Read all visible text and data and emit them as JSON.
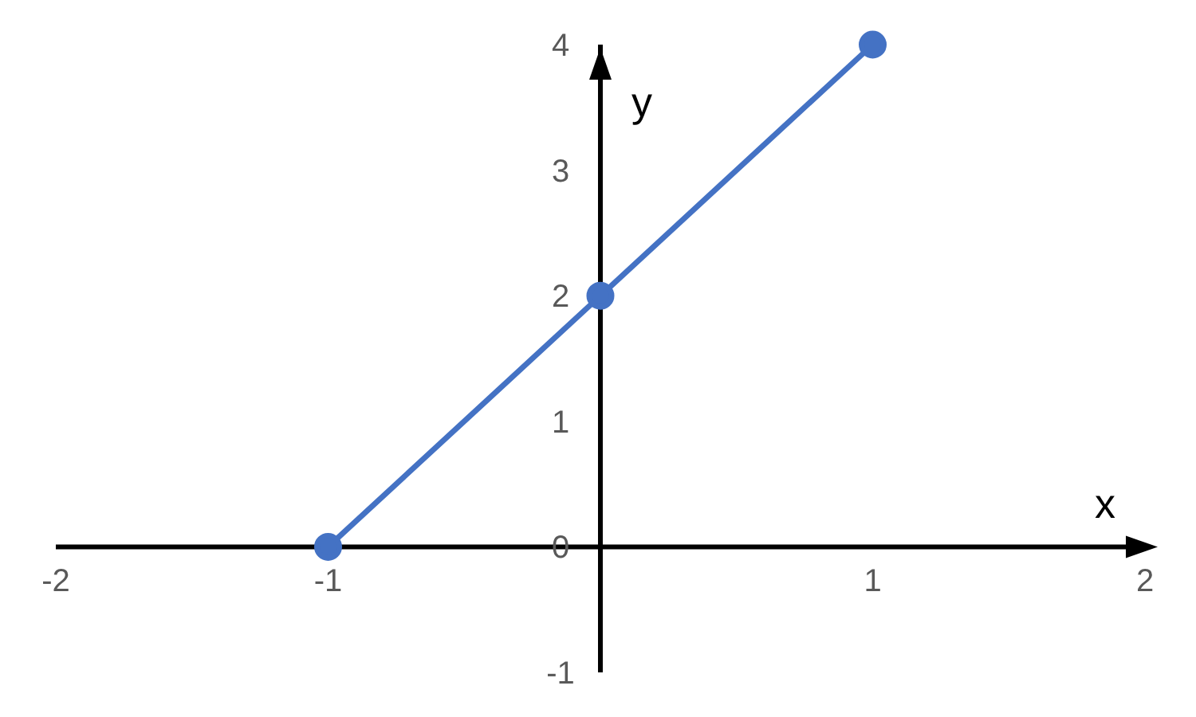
{
  "chart_data": {
    "type": "line",
    "xlabel": "x",
    "ylabel": "y",
    "x": [
      -1,
      0,
      1
    ],
    "series": [
      {
        "color": "#4472c4",
        "values": [
          0,
          2,
          4
        ]
      }
    ],
    "xlim": [
      -2,
      2
    ],
    "xticks": [
      -2,
      -1,
      1,
      2
    ],
    "ylim": [
      -1,
      4
    ],
    "yticks": [
      -1,
      0,
      1,
      2,
      3,
      4
    ],
    "grid": false,
    "legend": false,
    "marker": "circle",
    "line_style": "solid"
  }
}
